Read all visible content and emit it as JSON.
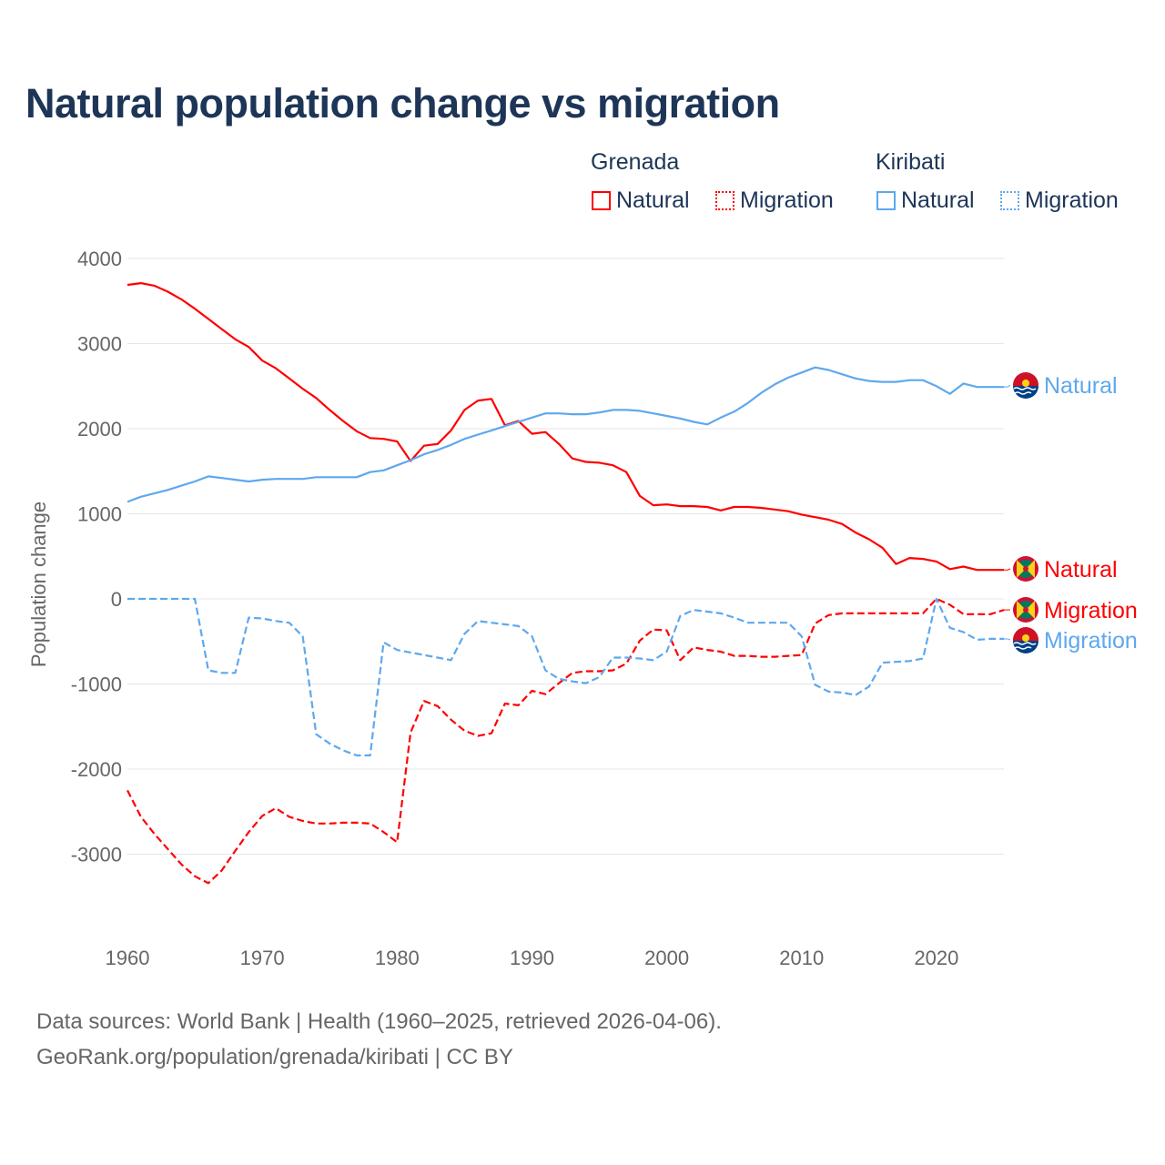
{
  "title": "Natural population change vs migration",
  "legend": {
    "groups": [
      {
        "name": "Grenada",
        "color": "#ff0000",
        "items": [
          "Natural",
          "Migration"
        ]
      },
      {
        "name": "Kiribati",
        "color": "#5ea8ee",
        "items": [
          "Natural",
          "Migration"
        ]
      }
    ]
  },
  "footer": {
    "line1": "Data sources: World Bank | Health (1960–2025, retrieved 2026-04-06).",
    "line2": "GeoRank.org/population/grenada/kiribati | CC BY"
  },
  "chart_data": {
    "type": "line",
    "title": "Natural population change vs migration",
    "xlabel": "",
    "ylabel": "Population change",
    "xlim": [
      1960,
      2025
    ],
    "ylim": [
      -3500,
      4000
    ],
    "xticks": [
      1960,
      1970,
      1980,
      1990,
      2000,
      2010,
      2020
    ],
    "yticks": [
      4000,
      3000,
      2000,
      1000,
      0,
      -1000,
      -2000,
      -3000
    ],
    "grid": true,
    "legend_position": "top-right",
    "x_start": 1960,
    "series": [
      {
        "name": "Natural",
        "country": "Grenada",
        "color": "#ff0000",
        "dash": false,
        "end_label": "Natural",
        "values": [
          3690,
          3710,
          3680,
          3610,
          3520,
          3410,
          3290,
          3170,
          3050,
          2960,
          2800,
          2710,
          2590,
          2470,
          2360,
          2220,
          2090,
          1970,
          1890,
          1880,
          1850,
          1620,
          1800,
          1820,
          1980,
          2220,
          2330,
          2350,
          2040,
          2090,
          1940,
          1960,
          1820,
          1650,
          1610,
          1600,
          1570,
          1490,
          1210,
          1100,
          1110,
          1090,
          1090,
          1080,
          1040,
          1080,
          1080,
          1070,
          1050,
          1030,
          990,
          960,
          930,
          880,
          780,
          700,
          600,
          410,
          480,
          470,
          440,
          350,
          380,
          340,
          340,
          340
        ]
      },
      {
        "name": "Migration",
        "country": "Grenada",
        "color": "#ff0000",
        "dash": true,
        "end_label": "Migration",
        "values": [
          -2250,
          -2560,
          -2760,
          -2940,
          -3120,
          -3260,
          -3340,
          -3190,
          -2960,
          -2740,
          -2550,
          -2460,
          -2560,
          -2610,
          -2640,
          -2640,
          -2630,
          -2630,
          -2640,
          -2740,
          -2860,
          -1570,
          -1200,
          -1260,
          -1420,
          -1550,
          -1610,
          -1580,
          -1230,
          -1250,
          -1080,
          -1120,
          -990,
          -870,
          -850,
          -850,
          -840,
          -760,
          -490,
          -360,
          -370,
          -720,
          -570,
          -600,
          -620,
          -670,
          -670,
          -680,
          -680,
          -670,
          -660,
          -290,
          -190,
          -170,
          -170,
          -170,
          -170,
          -170,
          -170,
          -170,
          0,
          -70,
          -180,
          -180,
          -180,
          -130
        ]
      },
      {
        "name": "Natural",
        "country": "Kiribati",
        "color": "#5ea8ee",
        "dash": false,
        "end_label": "Natural",
        "values": [
          1140,
          1200,
          1240,
          1280,
          1330,
          1380,
          1440,
          1420,
          1400,
          1380,
          1400,
          1410,
          1410,
          1410,
          1430,
          1430,
          1430,
          1430,
          1490,
          1510,
          1570,
          1630,
          1700,
          1750,
          1810,
          1880,
          1930,
          1980,
          2030,
          2080,
          2130,
          2180,
          2180,
          2170,
          2170,
          2190,
          2220,
          2220,
          2210,
          2180,
          2150,
          2120,
          2080,
          2050,
          2130,
          2200,
          2300,
          2420,
          2520,
          2600,
          2660,
          2720,
          2690,
          2640,
          2590,
          2560,
          2550,
          2550,
          2570,
          2570,
          2500,
          2410,
          2530,
          2490,
          2490,
          2490
        ]
      },
      {
        "name": "Migration",
        "country": "Kiribati",
        "color": "#5ea8ee",
        "dash": true,
        "end_label": "Migration",
        "values": [
          0,
          0,
          0,
          0,
          0,
          0,
          -840,
          -870,
          -870,
          -220,
          -230,
          -260,
          -280,
          -440,
          -1590,
          -1700,
          -1780,
          -1840,
          -1840,
          -510,
          -600,
          -630,
          -660,
          -690,
          -720,
          -410,
          -260,
          -280,
          -300,
          -320,
          -440,
          -840,
          -940,
          -970,
          -990,
          -920,
          -690,
          -690,
          -700,
          -720,
          -620,
          -200,
          -130,
          -150,
          -170,
          -220,
          -280,
          -280,
          -280,
          -280,
          -440,
          -1010,
          -1090,
          -1100,
          -1130,
          -1030,
          -750,
          -740,
          -730,
          -700,
          0,
          -340,
          -390,
          -480,
          -470,
          -470
        ]
      }
    ]
  }
}
